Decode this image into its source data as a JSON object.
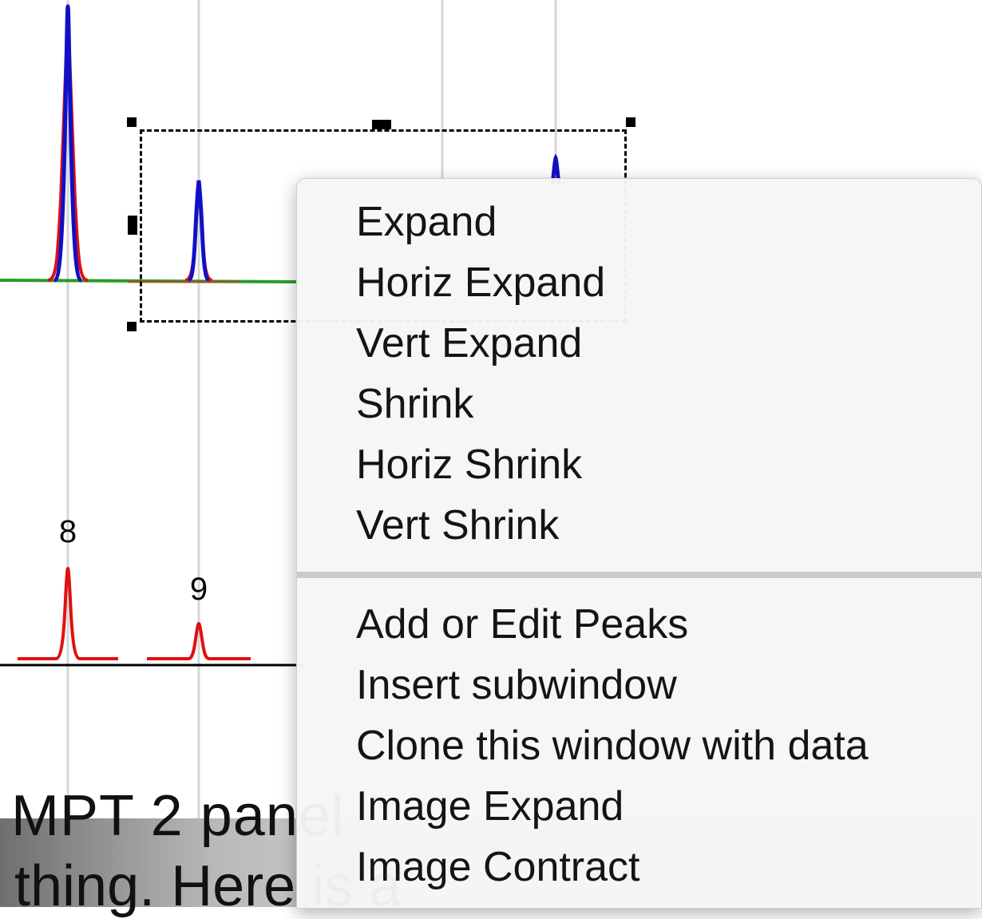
{
  "background_text": {
    "line1": "MPT 2 panel",
    "line2": "thing. Here is a"
  },
  "plot": {
    "peak_labels": [
      "8",
      "9"
    ],
    "colors": {
      "blue_trace": "#1010c8",
      "red_trace": "#e01010",
      "green_baseline": "#2a9a2a",
      "gridline": "#d6d6d6"
    }
  },
  "context_menu": {
    "group1": [
      "Expand",
      "Horiz Expand",
      "Vert Expand",
      "Shrink",
      "Horiz Shrink",
      "Vert Shrink"
    ],
    "group2": [
      "Add or Edit Peaks",
      "Insert subwindow",
      "Clone this window with data",
      "Image Expand",
      "Image Contract"
    ]
  }
}
